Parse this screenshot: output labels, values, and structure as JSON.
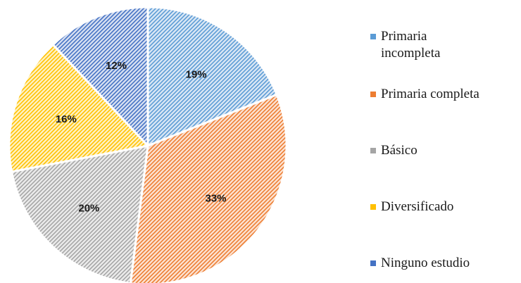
{
  "chart_data": {
    "type": "pie",
    "title": "",
    "slices": [
      {
        "label": "Primaria incompleta",
        "value": 19,
        "display": "19%",
        "color": "#5b9bd5",
        "light": "#dbe8f5"
      },
      {
        "label": "Primaria completa",
        "value": 33,
        "display": "33%",
        "color": "#ed7d31",
        "light": "#fce3d3"
      },
      {
        "label": "Básico",
        "value": 20,
        "display": "20%",
        "color": "#a5a5a5",
        "light": "#ececec"
      },
      {
        "label": "Diversificado",
        "value": 16,
        "display": "16%",
        "color": "#ffc000",
        "light": "#fff3c4"
      },
      {
        "label": "Ninguno estudio",
        "value": 12,
        "display": "12%",
        "color": "#4472c4",
        "light": "#d9e1f2"
      }
    ],
    "legend_position": "right",
    "pattern": "diagonal-stripes"
  }
}
